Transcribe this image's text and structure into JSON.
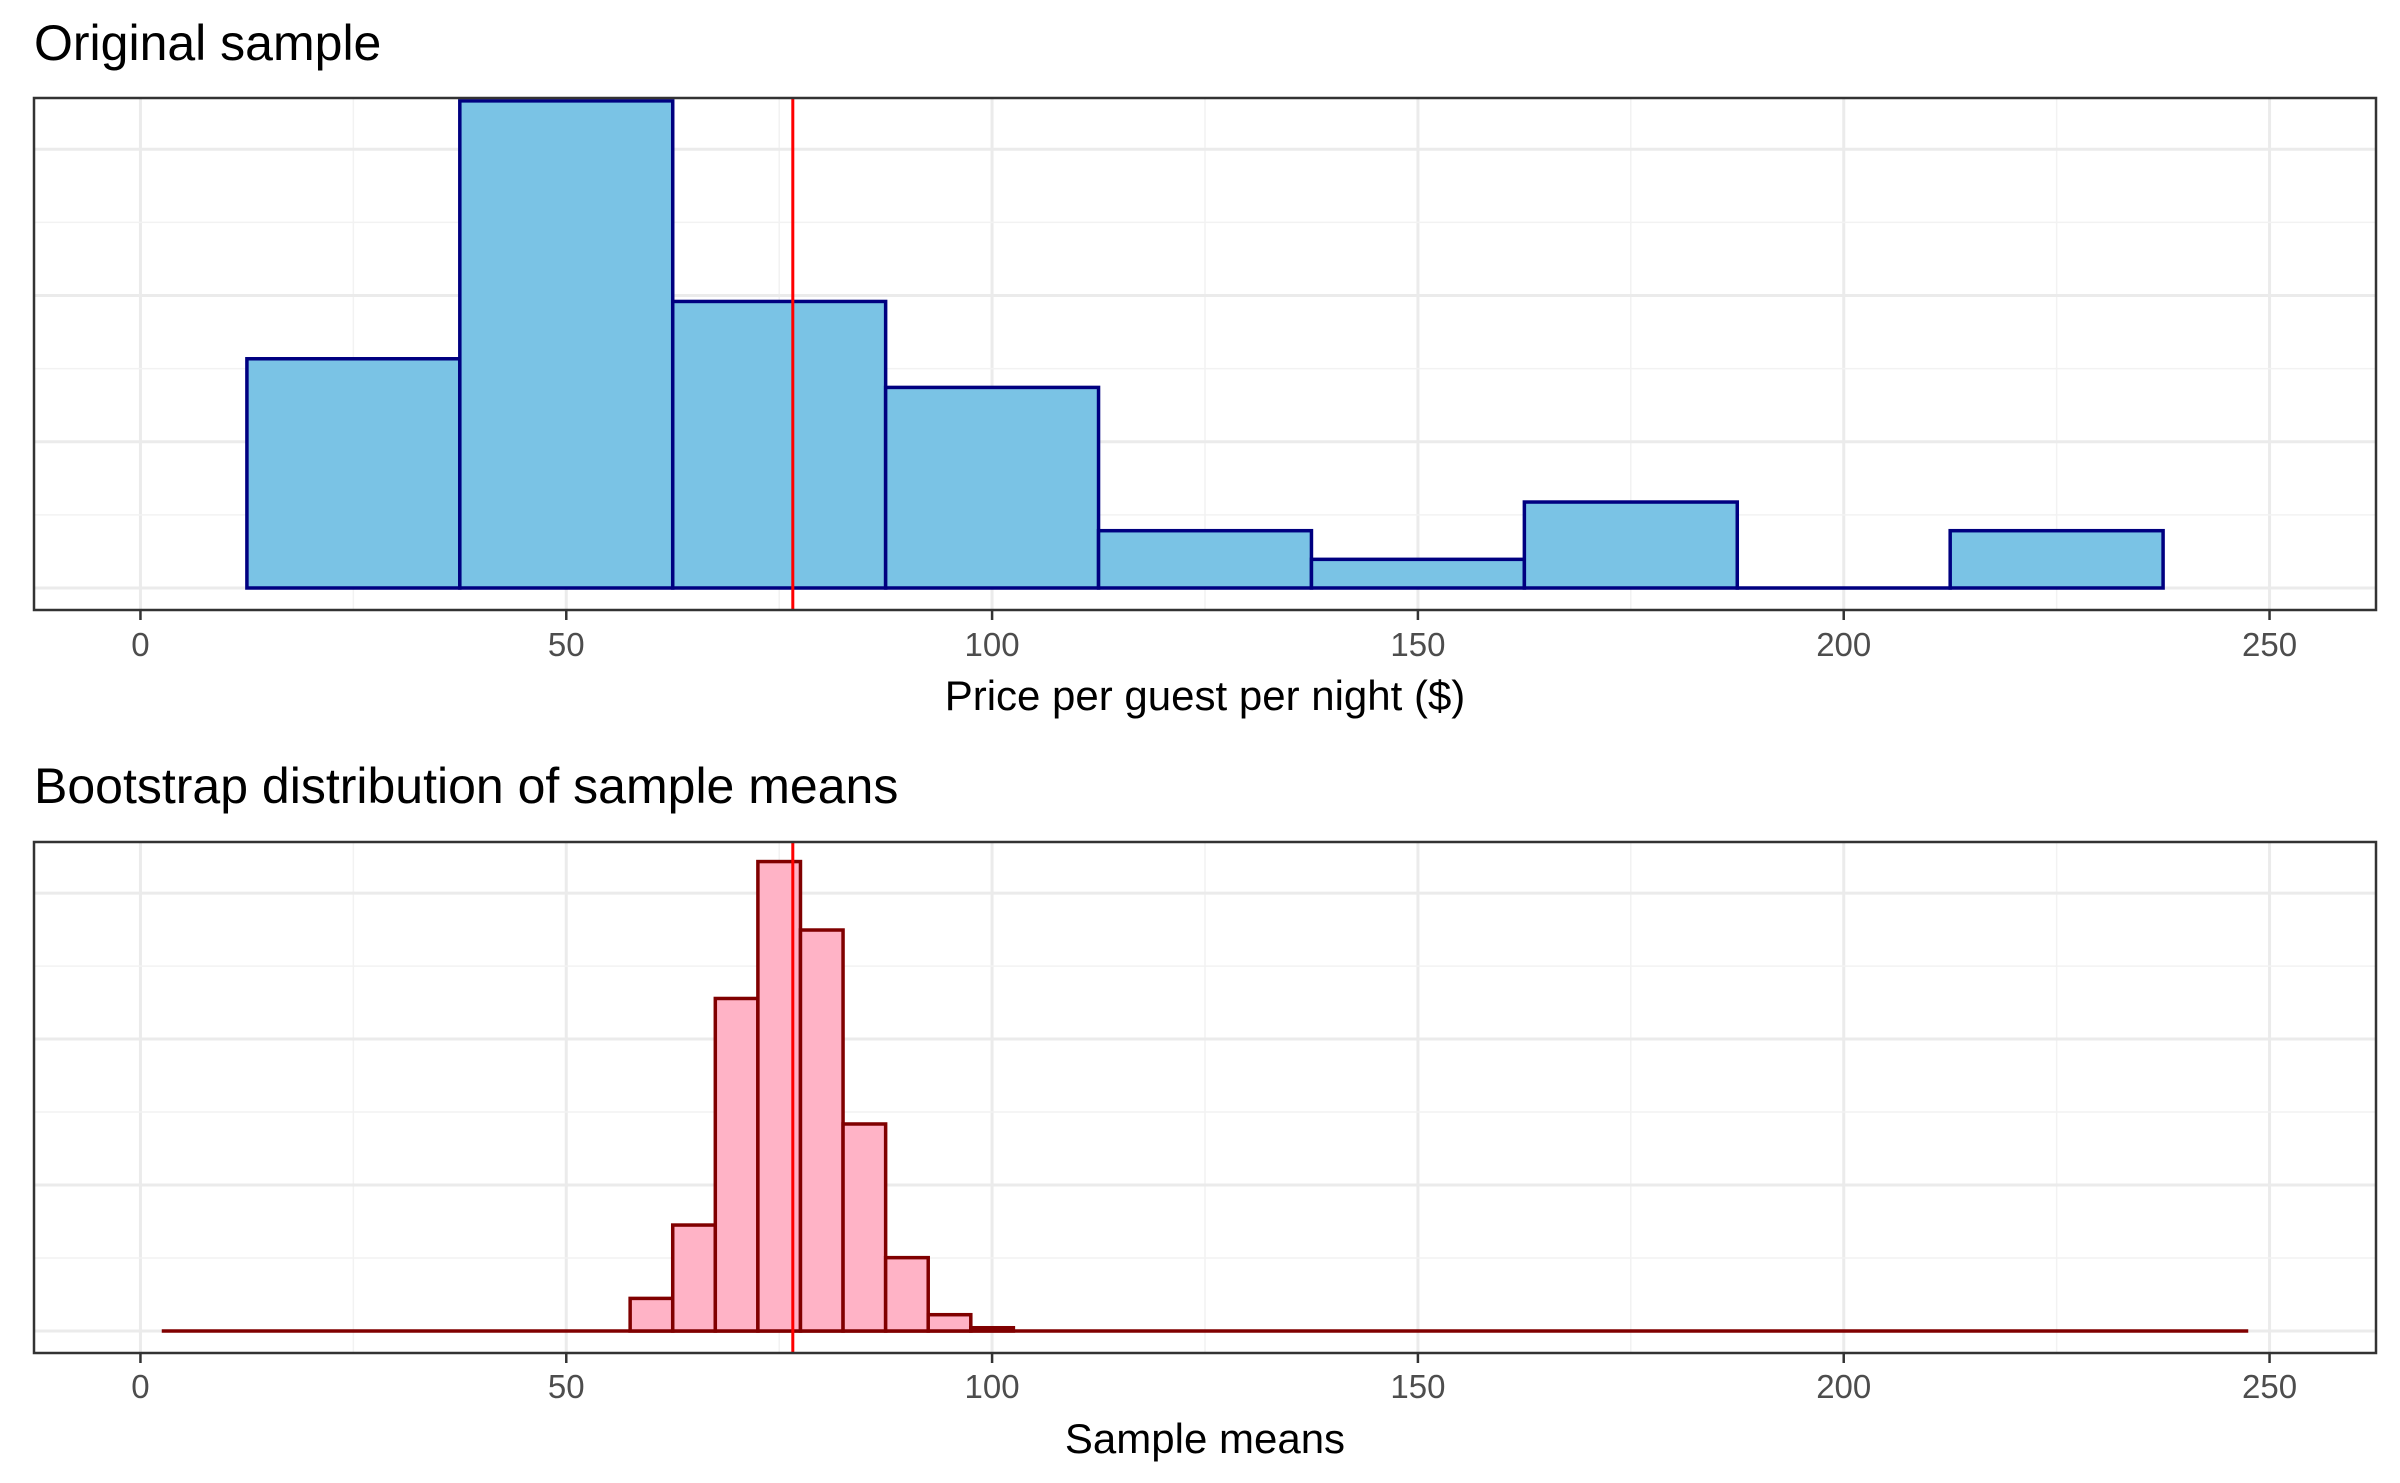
{
  "chart_data": [
    {
      "type": "bar",
      "title": "Original sample",
      "xlabel": "Price per guest per night ($)",
      "ylabel": "",
      "xlim": [
        -12.5,
        262.5
      ],
      "ylim": [
        0,
        17.1
      ],
      "x_ticks": [
        0,
        50,
        100,
        150,
        200,
        250
      ],
      "grid": true,
      "y_tick_labels_shown": false,
      "bin_width": 25,
      "bins": [
        {
          "start": 12.5,
          "end": 37.5,
          "count": 8
        },
        {
          "start": 37.5,
          "end": 62.5,
          "count": 17
        },
        {
          "start": 62.5,
          "end": 87.5,
          "count": 10
        },
        {
          "start": 87.5,
          "end": 112.5,
          "count": 7
        },
        {
          "start": 112.5,
          "end": 137.5,
          "count": 2
        },
        {
          "start": 137.5,
          "end": 162.5,
          "count": 1
        },
        {
          "start": 162.5,
          "end": 187.5,
          "count": 3
        },
        {
          "start": 187.5,
          "end": 212.5,
          "count": 0
        },
        {
          "start": 212.5,
          "end": 237.5,
          "count": 2
        }
      ],
      "reference_line": {
        "x": 76.6,
        "color": "#ff0000"
      },
      "fill_color": "#7ac3e5",
      "stroke_color": "#000080"
    },
    {
      "type": "bar",
      "title": "Bootstrap distribution of sample means",
      "xlabel": "Sample means",
      "ylabel": "",
      "xlim": [
        -12.5,
        262.5
      ],
      "ylim": [
        0,
        0.3
      ],
      "x_ticks": [
        0,
        50,
        100,
        150,
        200,
        250
      ],
      "grid": true,
      "y_tick_labels_shown": false,
      "bin_width": 5,
      "baseline_range": [
        2.5,
        247.5
      ],
      "bins": [
        {
          "start": 57.5,
          "end": 62.5,
          "count": 0.02
        },
        {
          "start": 62.5,
          "end": 67.5,
          "count": 0.065
        },
        {
          "start": 67.5,
          "end": 72.5,
          "count": 0.204
        },
        {
          "start": 72.5,
          "end": 77.5,
          "count": 0.288
        },
        {
          "start": 77.5,
          "end": 82.5,
          "count": 0.246
        },
        {
          "start": 82.5,
          "end": 87.5,
          "count": 0.127
        },
        {
          "start": 87.5,
          "end": 92.5,
          "count": 0.045
        },
        {
          "start": 92.5,
          "end": 97.5,
          "count": 0.01
        },
        {
          "start": 97.5,
          "end": 102.5,
          "count": 0.002
        }
      ],
      "reference_line": {
        "x": 76.6,
        "color": "#ff0000"
      },
      "fill_color": "#ffb3c6",
      "stroke_color": "#800000"
    }
  ]
}
